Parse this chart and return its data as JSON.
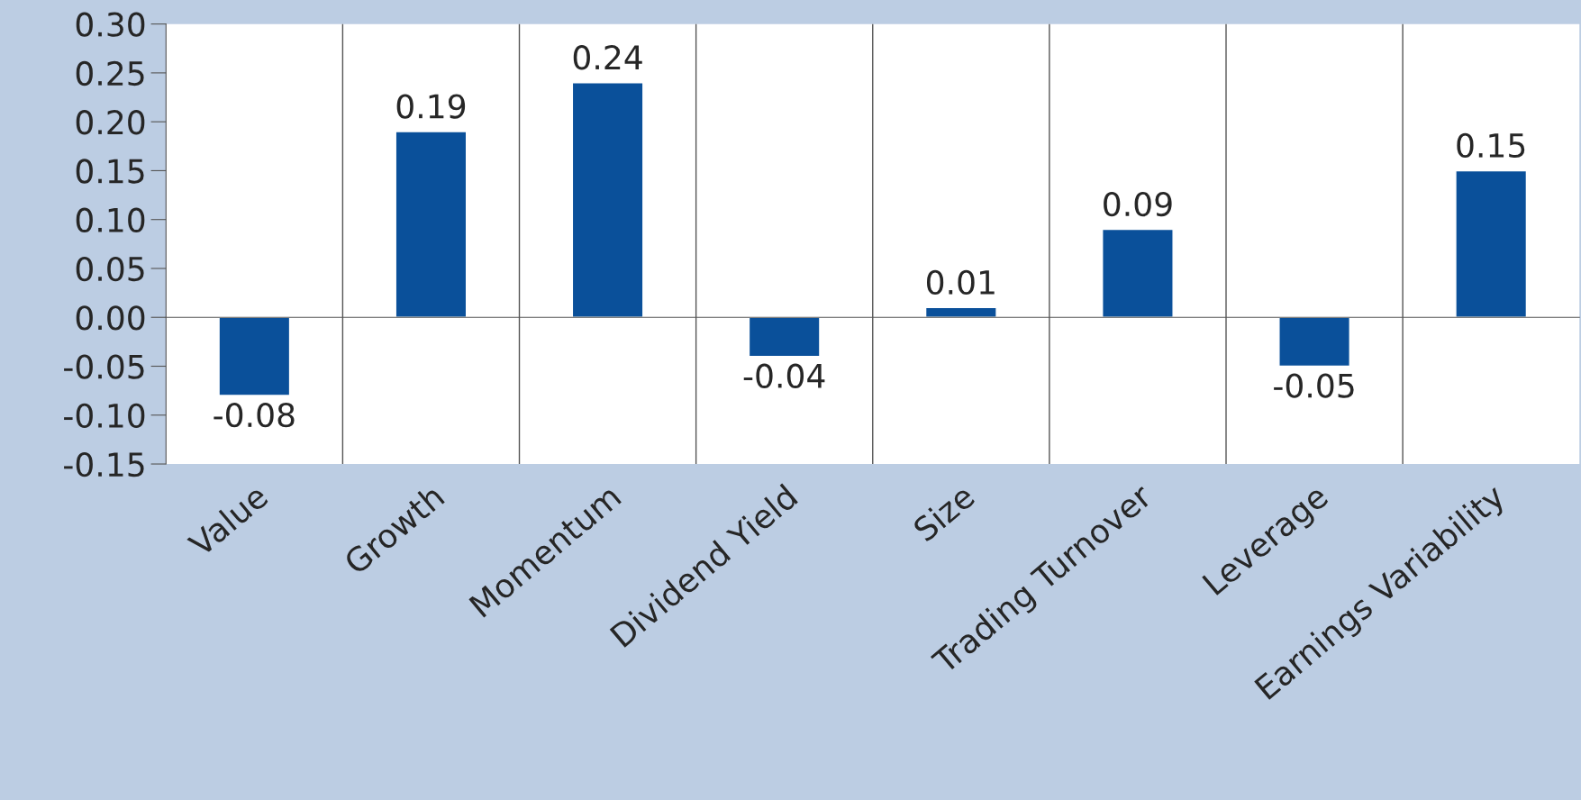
{
  "chart_data": {
    "type": "bar",
    "categories": [
      "Value",
      "Growth",
      "Momentum",
      "Dividend Yield",
      "Size",
      "Trading Turnover",
      "Leverage",
      "Earnings Variability"
    ],
    "values": [
      -0.08,
      0.19,
      0.24,
      -0.04,
      0.01,
      0.09,
      -0.05,
      0.15
    ],
    "color": "#0a509a",
    "ylim": [
      -0.15,
      0.3
    ],
    "yticks": [
      {
        "value": -0.15,
        "label": "-0.15"
      },
      {
        "value": -0.1,
        "label": "-0.10"
      },
      {
        "value": -0.05,
        "label": "-0.05"
      },
      {
        "value": 0,
        "label": "0.00"
      },
      {
        "value": 0.05,
        "label": "0.05"
      },
      {
        "value": 0.1,
        "label": "0.10"
      },
      {
        "value": 0.15,
        "label": "0.15"
      },
      {
        "value": 0.2,
        "label": "0.20"
      },
      {
        "value": 0.25,
        "label": "0.25"
      },
      {
        "value": 0.3,
        "label": "0.30"
      }
    ],
    "data_labels": true,
    "grid": "x"
  }
}
